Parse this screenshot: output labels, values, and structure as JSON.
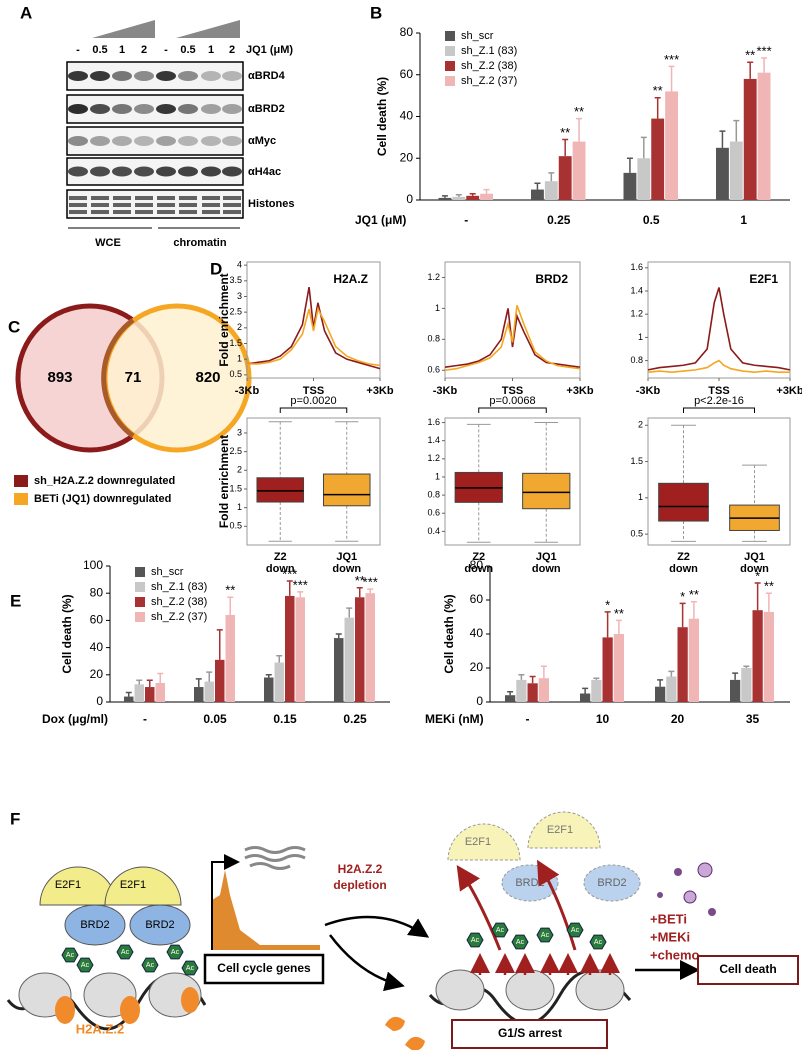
{
  "panel_labels": [
    "A",
    "B",
    "C",
    "D",
    "E",
    "F"
  ],
  "panel_a": {
    "jq1_label": "JQ1 (μM)",
    "doses": [
      "-",
      "0.5",
      "1",
      "2",
      "-",
      "0.5",
      "1",
      "2"
    ],
    "blots": [
      "αBRD4",
      "αBRD2",
      "αMyc",
      "αH4ac",
      "Histones"
    ],
    "fractions": [
      "WCE",
      "chromatin"
    ]
  },
  "panel_c": {
    "counts": [
      "893",
      "71",
      "820"
    ],
    "legend": [
      "sh_H2A.Z.2 downregulated",
      "BETi (JQ1) downregulated"
    ]
  },
  "panel_f": {
    "e2f1": "E2F1",
    "brd2": "BRD2",
    "ac": "Ac",
    "genes": "Cell cycle genes",
    "h2az2": "H2A.Z.2",
    "depletion": [
      "H2A.Z.2",
      "depletion"
    ],
    "arrest": "G1/S arrest",
    "treatments": [
      "+BETi",
      "+MEKi",
      "+chemo"
    ],
    "outcome": "Cell death"
  },
  "chart_data": [
    {
      "type": "bar",
      "ylabel": "Cell death (%)",
      "xlabel": "JQ1 (μM)",
      "categories": [
        "-",
        "0.25",
        "0.5",
        "1"
      ],
      "ylim": [
        0,
        80
      ],
      "yticks": [
        0,
        20,
        40,
        60,
        80
      ],
      "legend": true,
      "series": [
        {
          "name": "sh_scr",
          "color": "#555555",
          "values": [
            1,
            5,
            13,
            25
          ],
          "errors": [
            1,
            3,
            7,
            8
          ],
          "significance": [
            null,
            null,
            null,
            null
          ]
        },
        {
          "name": "sh_Z.1 (83)",
          "color": "#c8c8c8",
          "values": [
            1.5,
            9,
            20,
            28
          ],
          "errors": [
            1,
            4,
            10,
            10
          ],
          "significance": [
            null,
            null,
            null,
            null
          ]
        },
        {
          "name": "sh_Z.2 (38)",
          "color": "#a83232",
          "values": [
            2,
            21,
            39,
            58
          ],
          "errors": [
            1,
            8,
            10,
            8
          ],
          "significance": [
            null,
            "**",
            "**",
            "**"
          ]
        },
        {
          "name": "sh_Z.2 (37)",
          "color": "#f0b5b5",
          "values": [
            3,
            28,
            52,
            61
          ],
          "errors": [
            2,
            11,
            12,
            7
          ],
          "significance": [
            null,
            "**",
            "***",
            "***"
          ]
        }
      ]
    },
    {
      "type": "bar",
      "ylabel": "Cell death (%)",
      "xlabel": "Dox (μg/ml)",
      "categories": [
        "-",
        "0.05",
        "0.15",
        "0.25"
      ],
      "ylim": [
        0,
        100
      ],
      "yticks": [
        0,
        20,
        40,
        60,
        80,
        100
      ],
      "legend": true,
      "series": [
        {
          "name": "sh_scr",
          "color": "#555555",
          "values": [
            4,
            11,
            18,
            47
          ],
          "errors": [
            3,
            6,
            2,
            3
          ],
          "significance": [
            null,
            null,
            null,
            null
          ]
        },
        {
          "name": "sh_Z.1 (83)",
          "color": "#c8c8c8",
          "values": [
            13,
            15,
            29,
            62
          ],
          "errors": [
            3,
            7,
            5,
            7
          ],
          "significance": [
            null,
            null,
            null,
            null
          ]
        },
        {
          "name": "sh_Z.2 (38)",
          "color": "#a83232",
          "values": [
            11,
            31,
            78,
            77
          ],
          "errors": [
            5,
            22,
            11,
            7
          ],
          "significance": [
            null,
            null,
            "***",
            "**"
          ]
        },
        {
          "name": "sh_Z.2 (37)",
          "color": "#f0b5b5",
          "values": [
            14,
            64,
            77,
            80
          ],
          "errors": [
            7,
            13,
            4,
            3
          ],
          "significance": [
            null,
            "**",
            "***",
            "***"
          ]
        }
      ]
    },
    {
      "type": "bar",
      "ylabel": "Cell death (%)",
      "xlabel": "MEKi (nM)",
      "categories": [
        "-",
        "10",
        "20",
        "35"
      ],
      "ylim": [
        0,
        80
      ],
      "yticks": [
        0,
        20,
        40,
        60,
        80
      ],
      "legend": false,
      "series": [
        {
          "color": "#555555",
          "values": [
            4,
            5,
            9,
            13
          ],
          "errors": [
            2,
            3,
            4,
            4
          ],
          "significance": [
            null,
            null,
            null,
            null
          ]
        },
        {
          "color": "#c8c8c8",
          "values": [
            13,
            13,
            15,
            20
          ],
          "errors": [
            3,
            1,
            3,
            1
          ],
          "significance": [
            null,
            null,
            null,
            null
          ]
        },
        {
          "color": "#a83232",
          "values": [
            11,
            38,
            44,
            54
          ],
          "errors": [
            4,
            15,
            14,
            16
          ],
          "significance": [
            null,
            "*",
            "*",
            "*"
          ]
        },
        {
          "color": "#f0b5b5",
          "values": [
            14,
            40,
            49,
            53
          ],
          "errors": [
            7,
            8,
            10,
            11
          ],
          "significance": [
            null,
            "**",
            "**",
            "**"
          ]
        }
      ]
    },
    {
      "type": "line",
      "title": "H2A.Z",
      "ylabel": "Fold enrichment",
      "x": [
        -3,
        -2.5,
        -2,
        -1.5,
        -1,
        -0.5,
        -0.2,
        0,
        0.2,
        0.5,
        1,
        1.5,
        2,
        2.5,
        3
      ],
      "xlim": [
        -3,
        3
      ],
      "xticks": [
        {
          "value": -3,
          "label": "-3Kb"
        },
        {
          "value": 0,
          "label": "TSS"
        },
        {
          "value": 3,
          "label": "+3Kb"
        }
      ],
      "ylim": [
        0.4,
        4.1
      ],
      "yticks": [
        0.5,
        1.0,
        1.5,
        2.0,
        2.5,
        3.0,
        3.5,
        4.0
      ],
      "series": [
        {
          "color": "#8b1a1a",
          "values": [
            0.85,
            0.9,
            0.95,
            1.1,
            1.4,
            2.1,
            3.3,
            2.0,
            2.8,
            1.9,
            1.2,
            1.0,
            0.9,
            0.8,
            0.7
          ]
        },
        {
          "color": "#f5a623",
          "values": [
            0.85,
            0.85,
            0.9,
            1.0,
            1.3,
            1.8,
            2.6,
            1.9,
            2.6,
            2.2,
            1.4,
            1.1,
            0.95,
            0.85,
            0.8
          ]
        }
      ]
    },
    {
      "type": "line",
      "title": "BRD2",
      "x": [
        -3,
        -2.5,
        -2,
        -1.5,
        -1,
        -0.5,
        -0.2,
        0,
        0.2,
        0.5,
        1,
        1.5,
        2,
        2.5,
        3
      ],
      "xlim": [
        -3,
        3
      ],
      "xticks": [
        {
          "value": -3,
          "label": "-3Kb"
        },
        {
          "value": 0,
          "label": "TSS"
        },
        {
          "value": 3,
          "label": "+3Kb"
        }
      ],
      "ylim": [
        0.55,
        1.3
      ],
      "yticks": [
        0.6,
        0.8,
        1.0,
        1.2
      ],
      "series": [
        {
          "color": "#8b1a1a",
          "values": [
            0.62,
            0.63,
            0.64,
            0.66,
            0.7,
            0.8,
            1.0,
            0.75,
            0.95,
            0.85,
            0.7,
            0.65,
            0.64,
            0.63,
            0.62
          ]
        },
        {
          "color": "#f5a623",
          "values": [
            0.6,
            0.61,
            0.63,
            0.65,
            0.68,
            0.75,
            0.9,
            0.78,
            1.02,
            0.9,
            0.72,
            0.66,
            0.63,
            0.62,
            0.61
          ]
        }
      ]
    },
    {
      "type": "line",
      "title": "E2F1",
      "x": [
        -3,
        -2.5,
        -2,
        -1.5,
        -1,
        -0.5,
        -0.2,
        0,
        0.2,
        0.5,
        1,
        1.5,
        2,
        2.5,
        3
      ],
      "xlim": [
        -3,
        3
      ],
      "xticks": [
        {
          "value": -3,
          "label": "-3Kb"
        },
        {
          "value": 0,
          "label": "TSS"
        },
        {
          "value": 3,
          "label": "+3Kb"
        }
      ],
      "ylim": [
        0.65,
        1.65
      ],
      "yticks": [
        0.8,
        1.0,
        1.2,
        1.4,
        1.6
      ],
      "series": [
        {
          "color": "#8b1a1a",
          "values": [
            0.72,
            0.74,
            0.75,
            0.76,
            0.78,
            0.9,
            1.3,
            1.43,
            1.2,
            0.9,
            0.78,
            0.76,
            0.75,
            0.74,
            0.72
          ]
        },
        {
          "color": "#f5a623",
          "values": [
            0.7,
            0.71,
            0.7,
            0.71,
            0.72,
            0.74,
            0.78,
            0.8,
            0.76,
            0.73,
            0.71,
            0.7,
            0.71,
            0.7,
            0.7
          ]
        }
      ]
    },
    {
      "type": "box",
      "ylabel": "Fold enrichment",
      "annotation": "p=0.0020",
      "categories": [
        [
          "Z2",
          "down"
        ],
        [
          "JQ1",
          "down"
        ]
      ],
      "ylim": [
        0,
        3.4
      ],
      "yticks": [
        0.5,
        1.0,
        1.5,
        2.0,
        2.5,
        3.0
      ],
      "boxes": [
        {
          "color": "#a02020",
          "whislo": 0.1,
          "q1": 1.15,
          "med": 1.45,
          "q3": 1.8,
          "whishi": 3.3
        },
        {
          "color": "#f0a830",
          "whislo": 0.1,
          "q1": 1.05,
          "med": 1.35,
          "q3": 1.9,
          "whishi": 3.3
        }
      ]
    },
    {
      "type": "box",
      "annotation": "p=0.0068",
      "categories": [
        [
          "Z2",
          "down"
        ],
        [
          "JQ1",
          "down"
        ]
      ],
      "ylim": [
        0.25,
        1.65
      ],
      "yticks": [
        0.4,
        0.6,
        0.8,
        1.0,
        1.2,
        1.4,
        1.6
      ],
      "boxes": [
        {
          "color": "#a02020",
          "whislo": 0.28,
          "q1": 0.72,
          "med": 0.88,
          "q3": 1.05,
          "whishi": 1.58
        },
        {
          "color": "#f0a830",
          "whislo": 0.28,
          "q1": 0.65,
          "med": 0.83,
          "q3": 1.04,
          "whishi": 1.6
        }
      ]
    },
    {
      "type": "box",
      "annotation": "p<2.2e-16",
      "categories": [
        [
          "Z2",
          "down"
        ],
        [
          "JQ1",
          "down"
        ]
      ],
      "ylim": [
        0.35,
        2.1
      ],
      "yticks": [
        0.5,
        1.0,
        1.5,
        2.0
      ],
      "boxes": [
        {
          "color": "#a02020",
          "whislo": 0.4,
          "q1": 0.68,
          "med": 0.88,
          "q3": 1.2,
          "whishi": 2.0
        },
        {
          "color": "#f0a830",
          "whislo": 0.4,
          "q1": 0.55,
          "med": 0.72,
          "q3": 0.9,
          "whishi": 1.45
        }
      ]
    }
  ]
}
